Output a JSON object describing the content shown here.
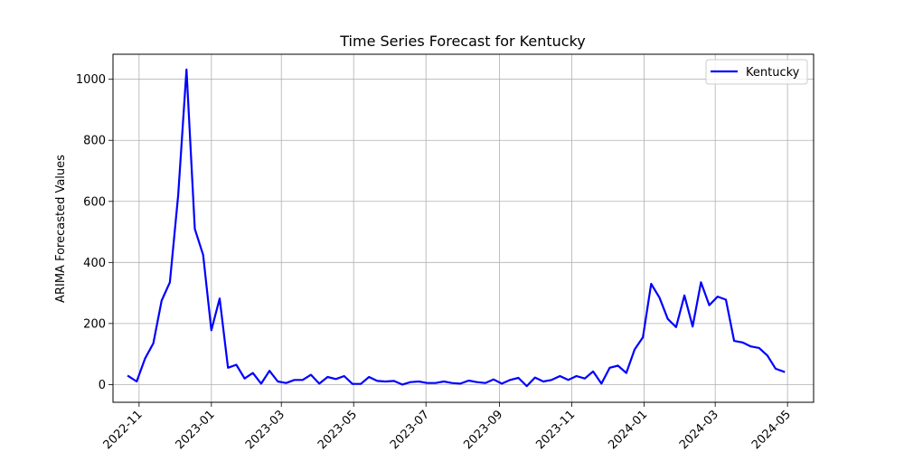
{
  "chart_data": {
    "type": "line",
    "title": "Time Series Forecast for Kentucky",
    "xlabel": "",
    "ylabel": "ARIMA Forecasted Values",
    "x_ticks": [
      "2022-11",
      "2023-01",
      "2023-03",
      "2023-05",
      "2023-07",
      "2023-09",
      "2023-11",
      "2024-01",
      "2024-03",
      "2024-05"
    ],
    "y_ticks": [
      0,
      200,
      400,
      600,
      800,
      1000
    ],
    "xlim": [
      "2022-10-10",
      "2024-05-23"
    ],
    "ylim": [
      -58,
      1082
    ],
    "grid": true,
    "legend_position": "top-right",
    "line_color": "#0000ff",
    "series": [
      {
        "name": "Kentucky",
        "x": [
          "2022-10-23",
          "2022-10-30",
          "2022-11-06",
          "2022-11-13",
          "2022-11-20",
          "2022-11-27",
          "2022-12-04",
          "2022-12-11",
          "2022-12-18",
          "2022-12-25",
          "2023-01-01",
          "2023-01-08",
          "2023-01-15",
          "2023-01-22",
          "2023-01-29",
          "2023-02-05",
          "2023-02-12",
          "2023-02-19",
          "2023-02-26",
          "2023-03-05",
          "2023-03-12",
          "2023-03-19",
          "2023-03-26",
          "2023-04-02",
          "2023-04-09",
          "2023-04-16",
          "2023-04-23",
          "2023-04-30",
          "2023-05-07",
          "2023-05-14",
          "2023-05-21",
          "2023-05-28",
          "2023-06-04",
          "2023-06-11",
          "2023-06-18",
          "2023-06-25",
          "2023-07-02",
          "2023-07-09",
          "2023-07-16",
          "2023-07-23",
          "2023-07-30",
          "2023-08-06",
          "2023-08-13",
          "2023-08-20",
          "2023-08-27",
          "2023-09-03",
          "2023-09-10",
          "2023-09-17",
          "2023-09-24",
          "2023-10-01",
          "2023-10-08",
          "2023-10-15",
          "2023-10-22",
          "2023-10-29",
          "2023-11-05",
          "2023-11-12",
          "2023-11-19",
          "2023-11-26",
          "2023-12-03",
          "2023-12-10",
          "2023-12-17",
          "2023-12-24",
          "2023-12-31",
          "2024-01-07",
          "2024-01-14",
          "2024-01-21",
          "2024-01-28",
          "2024-02-04",
          "2024-02-11",
          "2024-02-18",
          "2024-02-25",
          "2024-03-03",
          "2024-03-10",
          "2024-03-17",
          "2024-03-24",
          "2024-03-31",
          "2024-04-07",
          "2024-04-14",
          "2024-04-21",
          "2024-04-28"
        ],
        "y": [
          28,
          10,
          85,
          135,
          275,
          335,
          620,
          1032,
          510,
          425,
          178,
          282,
          55,
          65,
          20,
          38,
          3,
          45,
          10,
          5,
          15,
          15,
          32,
          3,
          25,
          18,
          28,
          2,
          2,
          25,
          12,
          10,
          12,
          0,
          8,
          10,
          5,
          5,
          10,
          5,
          3,
          13,
          8,
          5,
          17,
          3,
          15,
          22,
          -5,
          23,
          10,
          15,
          28,
          15,
          28,
          20,
          43,
          3,
          55,
          62,
          38,
          115,
          155,
          330,
          285,
          215,
          188,
          292,
          190,
          335,
          260,
          288,
          278,
          143,
          138,
          125,
          120,
          95,
          52,
          42
        ]
      }
    ]
  }
}
